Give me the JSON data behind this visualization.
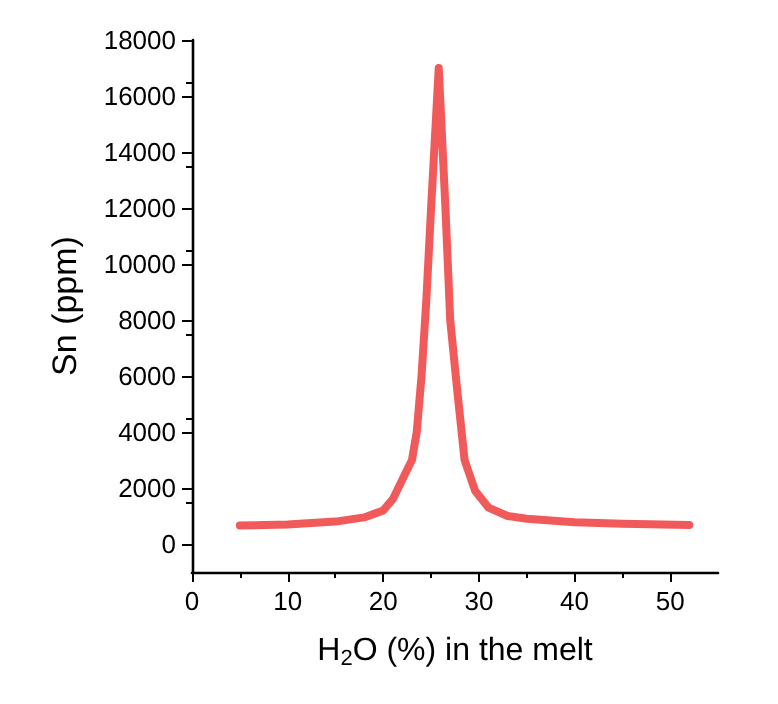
{
  "chart_data": {
    "type": "line",
    "xlabel": "H$_{2}$O (%) in the melt",
    "ylabel": "Sn (ppm)",
    "xlim": [
      0,
      55
    ],
    "xticks": [
      0,
      10,
      20,
      30,
      40,
      50
    ],
    "ylim": [
      -1000,
      18000
    ],
    "yticks": [
      0,
      2000,
      4000,
      6000,
      8000,
      10000,
      12000,
      14000,
      16000,
      18000
    ],
    "grid": false,
    "marker": "none",
    "line_style": "solid",
    "series": [
      {
        "color": "#f04848",
        "x": [
          5,
          10,
          15,
          18,
          20,
          21,
          22,
          23,
          23.5,
          24,
          24.5,
          25,
          25.8,
          26.5,
          27,
          27.7,
          28.5,
          29.6,
          31,
          33,
          35,
          40,
          45,
          52
        ],
        "values": [
          660,
          700,
          800,
          950,
          1200,
          1600,
          2300,
          3000,
          4000,
          6000,
          8700,
          12000,
          17000,
          12000,
          8000,
          5600,
          3000,
          1900,
          1300,
          1000,
          900,
          780,
          720,
          680
        ]
      }
    ]
  }
}
